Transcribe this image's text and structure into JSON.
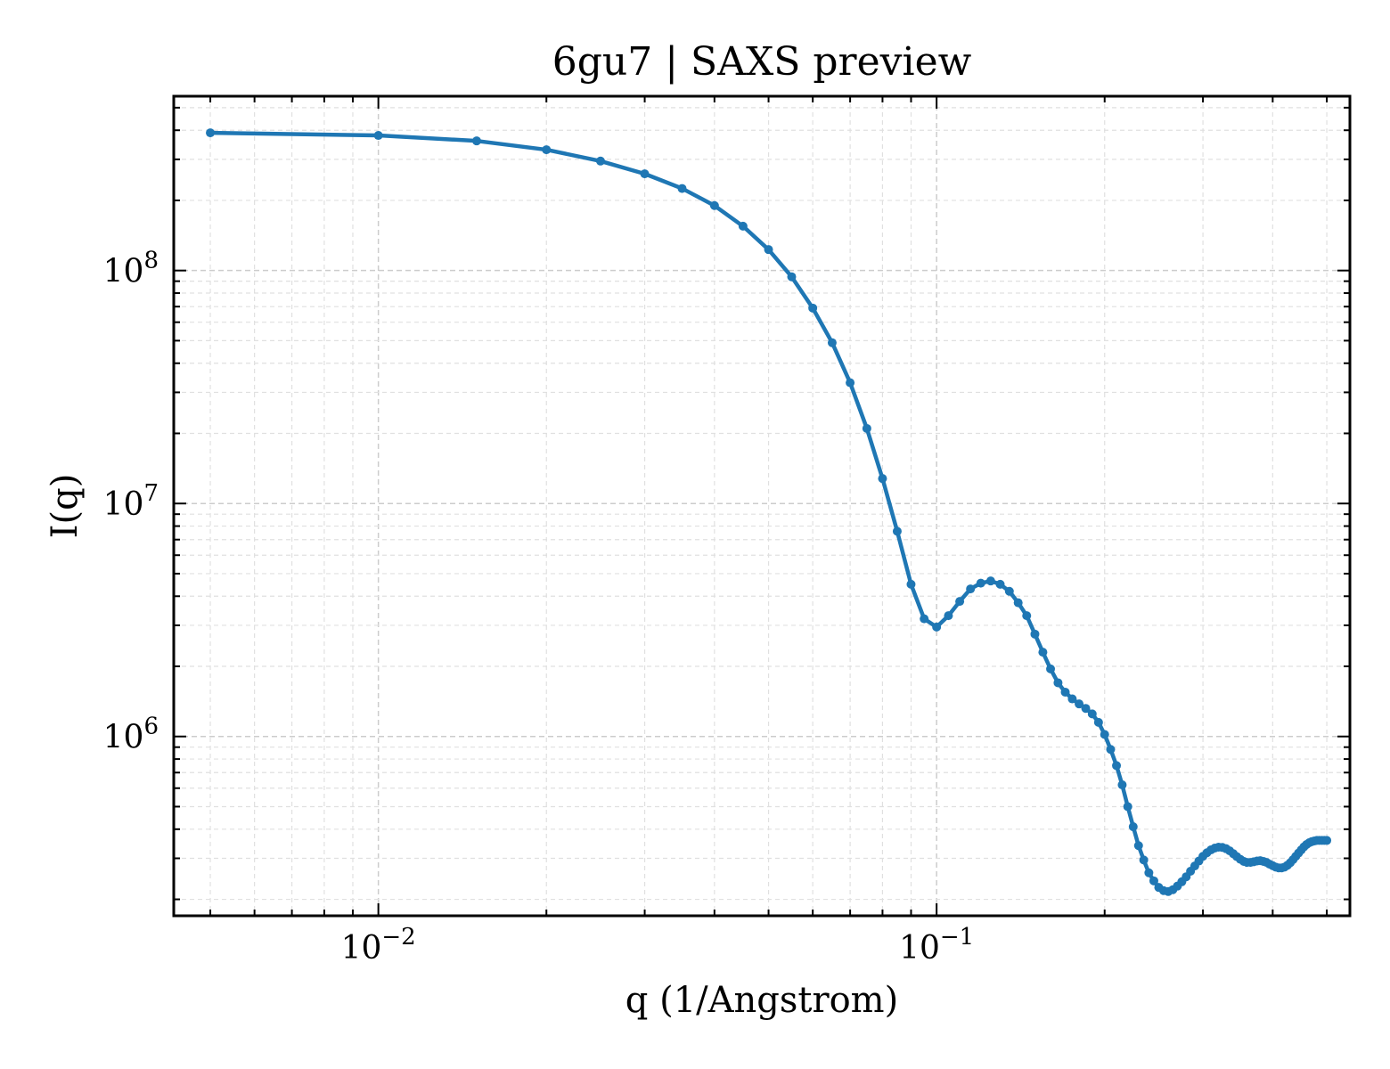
{
  "chart_data": {
    "type": "line",
    "title": "6gu7 | SAXS preview",
    "xlabel": "q (1/Angstrom)",
    "ylabel": "I(q)",
    "xscale": "log",
    "yscale": "log",
    "xlim": [
      0.0043,
      0.55
    ],
    "ylim": [
      170000,
      560000000
    ],
    "grid": true,
    "legend": "none",
    "x_ticks": [
      {
        "value": 0.01,
        "base": "10",
        "exp": "−2"
      },
      {
        "value": 0.1,
        "base": "10",
        "exp": "−1"
      }
    ],
    "y_ticks": [
      {
        "value": 1000000,
        "base": "10",
        "exp": "6"
      },
      {
        "value": 10000000,
        "base": "10",
        "exp": "7"
      },
      {
        "value": 100000000,
        "base": "10",
        "exp": "8"
      }
    ],
    "series": [
      {
        "color": "#1f77b4",
        "x": [
          0.005,
          0.01,
          0.015,
          0.02,
          0.025,
          0.03,
          0.035,
          0.04,
          0.045,
          0.05,
          0.055,
          0.06,
          0.065,
          0.07,
          0.075,
          0.08,
          0.085,
          0.09,
          0.095,
          0.1,
          0.105,
          0.11,
          0.115,
          0.12,
          0.125,
          0.13,
          0.135,
          0.14,
          0.145,
          0.15,
          0.155,
          0.16,
          0.165,
          0.17,
          0.175,
          0.18,
          0.185,
          0.19,
          0.195,
          0.2,
          0.205,
          0.21,
          0.215,
          0.22,
          0.225,
          0.23,
          0.235,
          0.24,
          0.245,
          0.25,
          0.255,
          0.26,
          0.265,
          0.27,
          0.275,
          0.28,
          0.285,
          0.29,
          0.295,
          0.3,
          0.305,
          0.31,
          0.315,
          0.32,
          0.325,
          0.33,
          0.335,
          0.34,
          0.345,
          0.35,
          0.355,
          0.36,
          0.365,
          0.37,
          0.375,
          0.38,
          0.385,
          0.39,
          0.395,
          0.4,
          0.405,
          0.41,
          0.415,
          0.42,
          0.425,
          0.43,
          0.435,
          0.44,
          0.445,
          0.45,
          0.455,
          0.46,
          0.465,
          0.47,
          0.475,
          0.48,
          0.485,
          0.49,
          0.495,
          0.5
        ],
        "y": [
          390000000,
          380000000,
          360000000,
          330000000,
          295000000,
          260000000,
          225000000,
          190000000,
          155000000,
          123000000,
          94000000,
          69000000,
          49000000,
          33000000,
          21000000,
          12800000,
          7600000,
          4500000,
          3200000,
          2950000,
          3300000,
          3800000,
          4300000,
          4550000,
          4650000,
          4500000,
          4200000,
          3750000,
          3300000,
          2750000,
          2300000,
          1950000,
          1700000,
          1550000,
          1450000,
          1380000,
          1320000,
          1250000,
          1150000,
          1020000,
          880000,
          750000,
          620000,
          500000,
          410000,
          340000,
          295000,
          260000,
          240000,
          225000,
          218000,
          216000,
          220000,
          228000,
          238000,
          250000,
          264000,
          278000,
          292000,
          306000,
          317000,
          326000,
          332000,
          335000,
          334000,
          330000,
          323000,
          314000,
          305000,
          297000,
          291000,
          288000,
          288000,
          290000,
          292000,
          293000,
          291000,
          288000,
          283000,
          279000,
          275000,
          273000,
          273000,
          275000,
          280000,
          287000,
          296000,
          306000,
          316000,
          326000,
          336000,
          344000,
          350000,
          354000,
          356000,
          358000,
          358000,
          358000,
          358000,
          358000
        ]
      }
    ]
  }
}
